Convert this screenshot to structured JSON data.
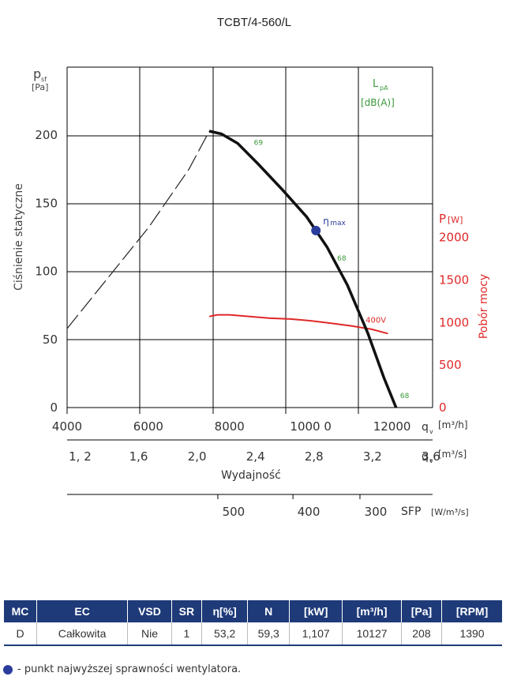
{
  "chart_data": {
    "type": "line",
    "title": "TCBT/4-560/L",
    "ylabel_symbol": "p",
    "ylabel_sub": "sf",
    "ylabel_unit": "[Pa]",
    "ylabel_side": "Ciśnienie statyczne",
    "xlabel": "Wydajność",
    "x_unit_m3h": "[m³/h]",
    "x_unit_m3s": "[m³/s]",
    "x_symbol": "q",
    "x_sub": "v",
    "xlim": [
      4000,
      13000
    ],
    "ylim": [
      0,
      250
    ],
    "y_ticks": [
      "0",
      "50",
      "100",
      "150",
      "200"
    ],
    "x_ticks_m3h": [
      "4000",
      "6000",
      "8000",
      "1000 0",
      "12000"
    ],
    "x_ticks_m3s": [
      "1, 2",
      "1,6",
      "2,0",
      "2,4",
      "2,8",
      "3,2",
      "3,6"
    ],
    "sfp_label": "SFP",
    "sfp_unit": "[W/m³/s]",
    "sfp_ticks": [
      "500",
      "400",
      "300"
    ],
    "power_label": "P",
    "power_unit": "[W]",
    "power_side": "Pobór mocy",
    "power_ticks": [
      "0",
      "500",
      "1000",
      "1500",
      "2000"
    ],
    "lpa_label": "L",
    "lpa_sub": "pA",
    "lpa_unit": "[dB(A)]",
    "eta_label": "η",
    "eta_sub": "max",
    "voltage_label": "400V",
    "series": [
      {
        "name": "pressure",
        "x": [
          7500,
          7800,
          8200,
          8700,
          9300,
          9900,
          10400,
          10900,
          11400,
          11800,
          12100
        ],
        "y": [
          203,
          201,
          194,
          179,
          160,
          140,
          118,
          90,
          55,
          22,
          0
        ]
      },
      {
        "name": "stall",
        "x": [
          4000,
          5000,
          6000,
          7000,
          7500
        ],
        "y": [
          58,
          95,
          132,
          175,
          203
        ]
      },
      {
        "name": "power",
        "x": [
          7500,
          7700,
          8000,
          8500,
          9000,
          9500,
          10000,
          10500,
          11000,
          11500,
          11900
        ],
        "y": [
          1070,
          1090,
          1090,
          1070,
          1050,
          1040,
          1020,
          990,
          960,
          920,
          870
        ]
      }
    ],
    "eta_point": {
      "x": 10127,
      "y": 130
    },
    "lpa_labels": [
      {
        "text": "69",
        "x": 8600,
        "y": 193
      },
      {
        "text": "68",
        "x": 10650,
        "y": 108
      },
      {
        "text": "68",
        "x": 12200,
        "y": 7
      }
    ]
  },
  "table": {
    "headers": [
      "MC",
      "EC",
      "VSD",
      "SR",
      "η[%]",
      "N",
      "[kW]",
      "[m³/h]",
      "[Pa]",
      "[RPM]"
    ],
    "row": [
      "D",
      "Całkowita",
      "Nie",
      "1",
      "53,2",
      "59,3",
      "1,107",
      "10127",
      "208",
      "1390"
    ]
  },
  "note": "- punkt najwyższej sprawności wentylatora.",
  "colors": {
    "header": "#1e3a78",
    "power": "#e02828",
    "lpa": "#3a9a3a",
    "eta": "#2a3c9c"
  }
}
